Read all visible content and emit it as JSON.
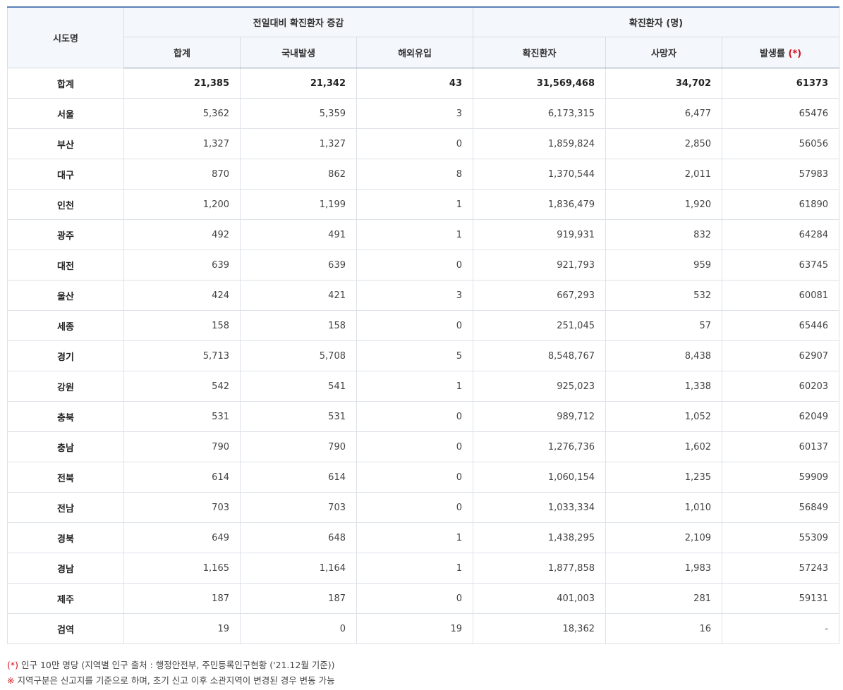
{
  "header": {
    "region": "시도명",
    "group_change": "전일대비 확진환자 증감",
    "group_confirmed": "확진환자 (명)",
    "col_total": "합계",
    "col_domestic": "국내발생",
    "col_overseas": "해외유입",
    "col_confirmed": "확진환자",
    "col_deaths": "사망자",
    "col_rate": "발생률",
    "rate_mark": "(*)"
  },
  "rows": [
    {
      "name": "합계",
      "total": "21,385",
      "domestic": "21,342",
      "overseas": "43",
      "confirmed": "31,569,468",
      "deaths": "34,702",
      "rate": "61373"
    },
    {
      "name": "서울",
      "total": "5,362",
      "domestic": "5,359",
      "overseas": "3",
      "confirmed": "6,173,315",
      "deaths": "6,477",
      "rate": "65476"
    },
    {
      "name": "부산",
      "total": "1,327",
      "domestic": "1,327",
      "overseas": "0",
      "confirmed": "1,859,824",
      "deaths": "2,850",
      "rate": "56056"
    },
    {
      "name": "대구",
      "total": "870",
      "domestic": "862",
      "overseas": "8",
      "confirmed": "1,370,544",
      "deaths": "2,011",
      "rate": "57983"
    },
    {
      "name": "인천",
      "total": "1,200",
      "domestic": "1,199",
      "overseas": "1",
      "confirmed": "1,836,479",
      "deaths": "1,920",
      "rate": "61890"
    },
    {
      "name": "광주",
      "total": "492",
      "domestic": "491",
      "overseas": "1",
      "confirmed": "919,931",
      "deaths": "832",
      "rate": "64284"
    },
    {
      "name": "대전",
      "total": "639",
      "domestic": "639",
      "overseas": "0",
      "confirmed": "921,793",
      "deaths": "959",
      "rate": "63745"
    },
    {
      "name": "울산",
      "total": "424",
      "domestic": "421",
      "overseas": "3",
      "confirmed": "667,293",
      "deaths": "532",
      "rate": "60081"
    },
    {
      "name": "세종",
      "total": "158",
      "domestic": "158",
      "overseas": "0",
      "confirmed": "251,045",
      "deaths": "57",
      "rate": "65446"
    },
    {
      "name": "경기",
      "total": "5,713",
      "domestic": "5,708",
      "overseas": "5",
      "confirmed": "8,548,767",
      "deaths": "8,438",
      "rate": "62907"
    },
    {
      "name": "강원",
      "total": "542",
      "domestic": "541",
      "overseas": "1",
      "confirmed": "925,023",
      "deaths": "1,338",
      "rate": "60203"
    },
    {
      "name": "충북",
      "total": "531",
      "domestic": "531",
      "overseas": "0",
      "confirmed": "989,712",
      "deaths": "1,052",
      "rate": "62049"
    },
    {
      "name": "충남",
      "total": "790",
      "domestic": "790",
      "overseas": "0",
      "confirmed": "1,276,736",
      "deaths": "1,602",
      "rate": "60137"
    },
    {
      "name": "전북",
      "total": "614",
      "domestic": "614",
      "overseas": "0",
      "confirmed": "1,060,154",
      "deaths": "1,235",
      "rate": "59909"
    },
    {
      "name": "전남",
      "total": "703",
      "domestic": "703",
      "overseas": "0",
      "confirmed": "1,033,334",
      "deaths": "1,010",
      "rate": "56849"
    },
    {
      "name": "경북",
      "total": "649",
      "domestic": "648",
      "overseas": "1",
      "confirmed": "1,438,295",
      "deaths": "2,109",
      "rate": "55309"
    },
    {
      "name": "경남",
      "total": "1,165",
      "domestic": "1,164",
      "overseas": "1",
      "confirmed": "1,877,858",
      "deaths": "1,983",
      "rate": "57243"
    },
    {
      "name": "제주",
      "total": "187",
      "domestic": "187",
      "overseas": "0",
      "confirmed": "401,003",
      "deaths": "281",
      "rate": "59131"
    },
    {
      "name": "검역",
      "total": "19",
      "domestic": "0",
      "overseas": "19",
      "confirmed": "18,362",
      "deaths": "16",
      "rate": "-"
    }
  ],
  "notes": {
    "note1_mark": "(*)",
    "note1_text": " 인구 10만 명당 (지역별 인구 출처 : 행정안전부, 주민등록인구현황 ('21.12월 기준))",
    "note2_mark": "※",
    "note2_text": " 지역구분은 신고지를 기준으로 하며, 초기 신고 이후 소관지역이 변경된 경우 변동 가능"
  },
  "colors": {
    "accent_top": "#5b7fb5",
    "header_bg": "#f4f7fb",
    "mark_red": "#d0101a"
  }
}
